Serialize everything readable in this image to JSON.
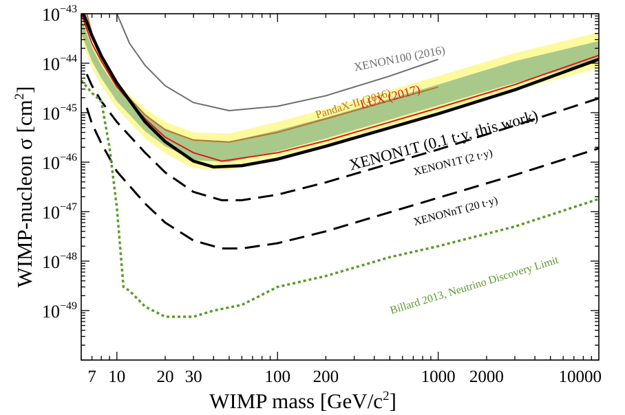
{
  "chart_data": {
    "type": "line",
    "xlabel_main": "WIMP mass [GeV/c",
    "xlabel_sup": "2",
    "xlabel_end": "]",
    "ylabel_main": "WIMP-nucleon σ  [cm",
    "ylabel_sup": "2",
    "ylabel_end": "]",
    "x_scale": "log",
    "y_scale": "log",
    "xlim": [
      6,
      10000
    ],
    "ylim": [
      1e-50,
      1e-43
    ],
    "x_ticks": [
      {
        "value": 7,
        "label": "7"
      },
      {
        "value": 10,
        "label": "10"
      },
      {
        "value": 20,
        "label": "20"
      },
      {
        "value": 30,
        "label": "30"
      },
      {
        "value": 100,
        "label": "100"
      },
      {
        "value": 200,
        "label": "200"
      },
      {
        "value": 1000,
        "label": "1000"
      },
      {
        "value": 2000,
        "label": "2000"
      },
      {
        "value": 10000,
        "label": "10000"
      }
    ],
    "y_ticks": [
      {
        "exp": -43,
        "base": "10",
        "sup": "−43"
      },
      {
        "exp": -44,
        "base": "10",
        "sup": "−44"
      },
      {
        "exp": -45,
        "base": "10",
        "sup": "−45"
      },
      {
        "exp": -46,
        "base": "10",
        "sup": "−46"
      },
      {
        "exp": -47,
        "base": "10",
        "sup": "−47"
      },
      {
        "exp": -48,
        "base": "10",
        "sup": "−48"
      },
      {
        "exp": -49,
        "base": "10",
        "sup": "−49"
      }
    ],
    "bands": [
      {
        "sigma": 2,
        "color": "#fdfa9e",
        "x": [
          6,
          7,
          8,
          10,
          15,
          20,
          30,
          50,
          100,
          200,
          1000,
          3000,
          10000
        ],
        "upper": [
          1e-43,
          2.7e-44,
          1.2e-44,
          4e-45,
          1.2e-45,
          6.5e-46,
          4e-46,
          3.8e-46,
          6.5e-46,
          1.2e-45,
          5.5e-45,
          1.6e-44,
          4.2e-44
        ],
        "lower": [
          3e-44,
          8e-45,
          3.5e-45,
          1.2e-45,
          3e-46,
          1.5e-46,
          7.5e-47,
          7e-47,
          1.15e-46,
          2.1e-46,
          9.5e-46,
          2.8e-45,
          8e-45
        ]
      },
      {
        "sigma": 1,
        "color": "#a8c98a",
        "x": [
          6,
          7,
          8,
          10,
          15,
          20,
          30,
          50,
          100,
          200,
          1000,
          3000,
          10000
        ],
        "upper": [
          8e-44,
          2.1e-44,
          9e-45,
          3e-45,
          9e-46,
          4.8e-46,
          2.8e-46,
          2.6e-46,
          4.4e-46,
          8e-46,
          3.7e-45,
          1.1e-44,
          2.8e-44
        ],
        "lower": [
          4e-44,
          1.1e-44,
          5e-45,
          1.7e-45,
          4.2e-46,
          2.1e-46,
          1.1e-46,
          1e-46,
          1.65e-46,
          3e-46,
          1.4e-45,
          4e-45,
          1.15e-44
        ]
      }
    ],
    "series": [
      {
        "name": "XENON100 (2016)",
        "color": "#6d6d6d",
        "width": 2,
        "style": "solid",
        "x": [
          10,
          12,
          15,
          20,
          30,
          50,
          100,
          200,
          500,
          1000
        ],
        "y": [
          1e-43,
          2.5e-44,
          9e-45,
          3.5e-45,
          1.6e-45,
          1.1e-45,
          1.35e-45,
          2.2e-45,
          5.5e-45,
          1.2e-44
        ]
      },
      {
        "name": "PandaX-II (2016)",
        "color": "#b8732a",
        "width": 2,
        "style": "solid",
        "x": [
          6.5,
          7,
          8,
          10,
          15,
          20,
          30,
          50,
          100,
          200,
          500,
          1000
        ],
        "y": [
          1e-43,
          4e-44,
          1.3e-44,
          3.6e-45,
          9e-46,
          4.5e-46,
          2.8e-46,
          2.55e-46,
          4e-46,
          7.5e-46,
          1.75e-45,
          3.3e-45
        ]
      },
      {
        "name": "LUX (2017)",
        "color": "#e01818",
        "width": 2,
        "style": "solid",
        "x": [
          6,
          7,
          8,
          10,
          15,
          20,
          30,
          45,
          100,
          200,
          1000,
          3000,
          10000
        ],
        "y": [
          1e-43,
          2.5e-44,
          1.1e-44,
          3.3e-45,
          7.5e-46,
          3.2e-46,
          1.55e-46,
          1.05e-46,
          1.55e-46,
          2.7e-46,
          1.25e-45,
          3.7e-45,
          1.45e-44
        ]
      },
      {
        "name": "XENON1T (0.1 t·y, this work)",
        "color": "#000000",
        "width": 4.5,
        "style": "solid",
        "x": [
          6.2,
          7,
          8,
          10,
          15,
          20,
          30,
          40,
          60,
          100,
          200,
          1000,
          3000,
          10000
        ],
        "y": [
          1e-43,
          3.6e-44,
          1.4e-44,
          4e-45,
          6.5e-46,
          2.6e-46,
          1.05e-46,
          8e-47,
          8.5e-47,
          1.15e-46,
          2.1e-46,
          9.5e-46,
          2.9e-45,
          1.2e-44
        ]
      },
      {
        "name": "XENON1T (2 t·y)",
        "color": "#000000",
        "width": 3,
        "style": "dashed",
        "x": [
          6.5,
          7,
          8,
          10,
          15,
          20,
          30,
          45,
          60,
          100,
          200,
          1000,
          3000,
          10000
        ],
        "y": [
          6e-45,
          3.5e-45,
          1.7e-45,
          6.5e-46,
          1.55e-46,
          6.2e-47,
          2.5e-47,
          1.7e-47,
          1.7e-47,
          2.2e-47,
          3.9e-47,
          1.8e-46,
          5.5e-46,
          1.95e-45
        ]
      },
      {
        "name": "XENONnT (20 t·y)",
        "color": "#000000",
        "width": 3,
        "style": "dashed",
        "x": [
          6.5,
          7,
          8,
          10,
          15,
          20,
          30,
          45,
          60,
          100,
          200,
          1000,
          3000,
          10000
        ],
        "y": [
          1.25e-45,
          6e-46,
          2.4e-46,
          6.5e-47,
          1.45e-47,
          6e-48,
          2.6e-48,
          1.8e-48,
          1.8e-48,
          2.3e-48,
          4e-48,
          1.9e-47,
          5.5e-47,
          1.9e-46
        ]
      },
      {
        "name": "Billard 2013, Neutrino Discovery Limit",
        "color": "#5a9a2a",
        "width": 3.5,
        "style": "dotted",
        "x": [
          6,
          7,
          8,
          9,
          10,
          11,
          12,
          15,
          20,
          25,
          30,
          40,
          60,
          100,
          200,
          500,
          1000,
          3000,
          10000
        ],
        "y": [
          4.5e-45,
          2.5e-45,
          1.7e-45,
          2e-46,
          1.2e-47,
          3e-49,
          2.5e-49,
          1.2e-49,
          7.5e-50,
          7.5e-50,
          7.5e-50,
          1e-49,
          1.3e-49,
          3e-49,
          5e-49,
          1.2e-48,
          2e-48,
          5e-48,
          1.8e-47
        ]
      }
    ],
    "annotations": [
      {
        "text": "XENON100 (2016)",
        "x": 580,
        "y": 1.05e-44,
        "rotate": -11,
        "color": "#6d6d6d",
        "size": 17
      },
      {
        "text": "PandaX-II (2016)",
        "x": 300,
        "y": 1.3e-45,
        "rotate": -17,
        "color": "#b8732a",
        "size": 16
      },
      {
        "text": "LUX (2017)",
        "x": 510,
        "y": 1.75e-45,
        "rotate": -15,
        "color": "#e01818",
        "size": 18
      },
      {
        "text": "XENON1T (0.1 t·y, this work)",
        "x": 1100,
        "y": 2.2e-46,
        "rotate": -15,
        "color": "#000000",
        "size": 23
      },
      {
        "text": "XENON1T (2 t·y)",
        "x": 1250,
        "y": 8.5e-47,
        "rotate": -14,
        "color": "#000000",
        "size": 16
      },
      {
        "text": "XENONnT (20 t·y)",
        "x": 1300,
        "y": 8.8e-48,
        "rotate": -15,
        "color": "#000000",
        "size": 16
      },
      {
        "text": "Billard 2013, Neutrino Discovery Limit",
        "x": 1700,
        "y": 2.8e-49,
        "rotate": -17,
        "color": "#5a9a2a",
        "size": 16
      }
    ]
  }
}
